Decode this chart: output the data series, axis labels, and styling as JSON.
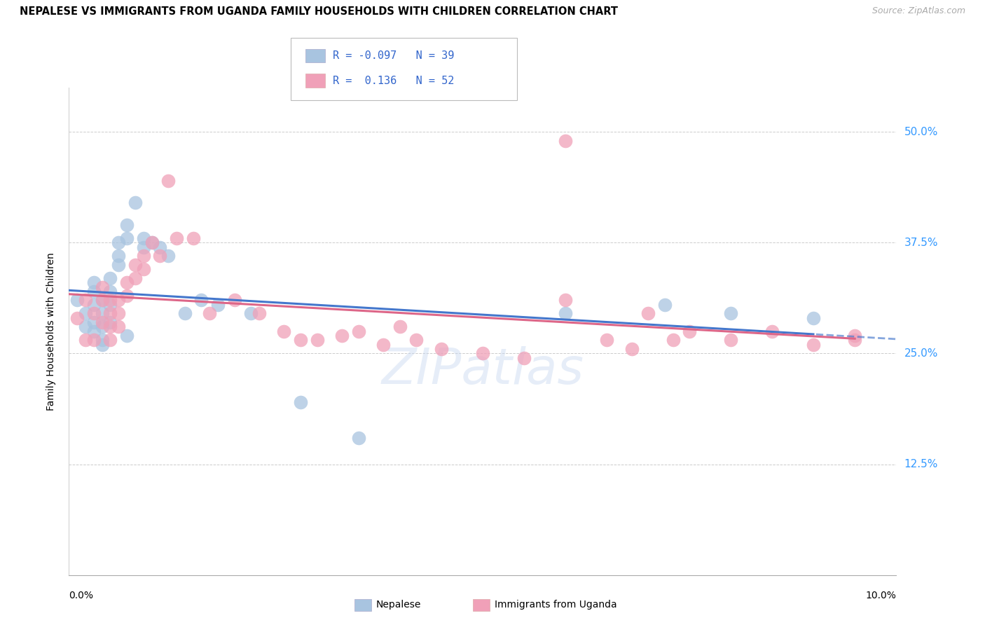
{
  "title": "NEPALESE VS IMMIGRANTS FROM UGANDA FAMILY HOUSEHOLDS WITH CHILDREN CORRELATION CHART",
  "source": "Source: ZipAtlas.com",
  "ylabel": "Family Households with Children",
  "yticks": [
    "50.0%",
    "37.5%",
    "25.0%",
    "12.5%"
  ],
  "ytick_vals": [
    0.5,
    0.375,
    0.25,
    0.125
  ],
  "xlim": [
    0.0,
    0.1
  ],
  "ylim": [
    0.0,
    0.55
  ],
  "legend_blue_R": "-0.097",
  "legend_blue_N": "39",
  "legend_pink_R": "0.136",
  "legend_pink_N": "52",
  "blue_color": "#a8c4e0",
  "pink_color": "#f0a0b8",
  "blue_line_color": "#4477cc",
  "pink_line_color": "#dd6688",
  "watermark": "ZIPatlas",
  "nepalese_x": [
    0.001,
    0.002,
    0.002,
    0.003,
    0.003,
    0.003,
    0.003,
    0.003,
    0.004,
    0.004,
    0.004,
    0.004,
    0.004,
    0.005,
    0.005,
    0.005,
    0.005,
    0.006,
    0.006,
    0.006,
    0.007,
    0.007,
    0.008,
    0.009,
    0.009,
    0.01,
    0.011,
    0.012,
    0.014,
    0.016,
    0.018,
    0.022,
    0.028,
    0.035,
    0.007,
    0.06,
    0.072,
    0.08,
    0.09
  ],
  "nepalese_y": [
    0.31,
    0.295,
    0.28,
    0.33,
    0.32,
    0.305,
    0.285,
    0.275,
    0.31,
    0.295,
    0.28,
    0.265,
    0.26,
    0.335,
    0.32,
    0.305,
    0.285,
    0.375,
    0.36,
    0.35,
    0.395,
    0.38,
    0.42,
    0.38,
    0.37,
    0.375,
    0.37,
    0.36,
    0.295,
    0.31,
    0.305,
    0.295,
    0.195,
    0.155,
    0.27,
    0.295,
    0.305,
    0.295,
    0.29
  ],
  "uganda_x": [
    0.001,
    0.002,
    0.002,
    0.003,
    0.003,
    0.004,
    0.004,
    0.004,
    0.005,
    0.005,
    0.005,
    0.005,
    0.006,
    0.006,
    0.006,
    0.007,
    0.007,
    0.008,
    0.008,
    0.009,
    0.009,
    0.01,
    0.011,
    0.012,
    0.013,
    0.015,
    0.017,
    0.02,
    0.023,
    0.026,
    0.028,
    0.03,
    0.033,
    0.035,
    0.038,
    0.04,
    0.042,
    0.045,
    0.05,
    0.055,
    0.06,
    0.065,
    0.068,
    0.07,
    0.073,
    0.075,
    0.08,
    0.085,
    0.09,
    0.095,
    0.06,
    0.095
  ],
  "uganda_y": [
    0.29,
    0.31,
    0.265,
    0.295,
    0.265,
    0.325,
    0.31,
    0.285,
    0.31,
    0.295,
    0.28,
    0.265,
    0.31,
    0.295,
    0.28,
    0.33,
    0.315,
    0.35,
    0.335,
    0.36,
    0.345,
    0.375,
    0.36,
    0.445,
    0.38,
    0.38,
    0.295,
    0.31,
    0.295,
    0.275,
    0.265,
    0.265,
    0.27,
    0.275,
    0.26,
    0.28,
    0.265,
    0.255,
    0.25,
    0.245,
    0.31,
    0.265,
    0.255,
    0.295,
    0.265,
    0.275,
    0.265,
    0.275,
    0.26,
    0.265,
    0.49,
    0.27
  ]
}
